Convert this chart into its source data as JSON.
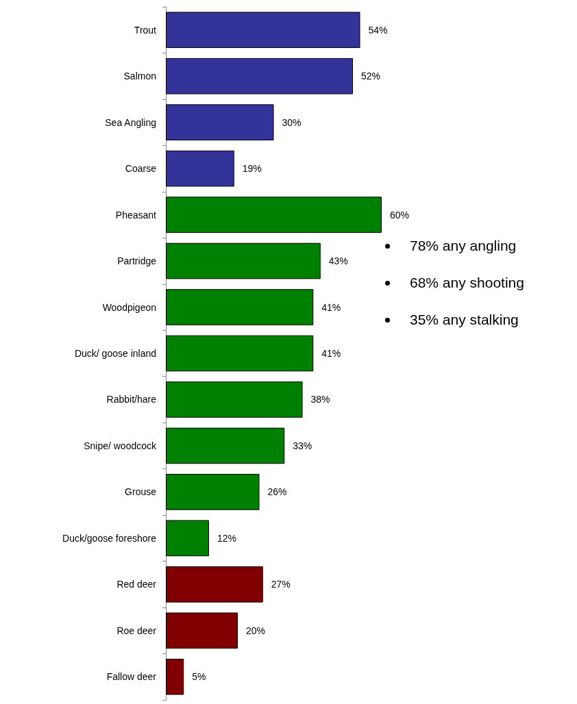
{
  "chart_data": {
    "type": "bar",
    "orientation": "horizontal",
    "categories": [
      "Trout",
      "Salmon",
      "Sea Angling",
      "Coarse",
      "Pheasant",
      "Partridge",
      "Woodpigeon",
      "Duck/ goose inland",
      "Rabbit/hare",
      "Snipe/ woodcock",
      "Grouse",
      "Duck/goose foreshore",
      "Red deer",
      "Roe deer",
      "Fallow deer"
    ],
    "values": [
      54,
      52,
      30,
      19,
      60,
      43,
      41,
      41,
      38,
      33,
      26,
      12,
      27,
      20,
      5
    ],
    "colors": [
      "#333399",
      "#333399",
      "#333399",
      "#333399",
      "#008000",
      "#008000",
      "#008000",
      "#008000",
      "#008000",
      "#008000",
      "#008000",
      "#008000",
      "#800000",
      "#800000",
      "#800000"
    ],
    "value_labels": [
      "54%",
      "52%",
      "30%",
      "19%",
      "60%",
      "43%",
      "41%",
      "41%",
      "38%",
      "33%",
      "26%",
      "12%",
      "27%",
      "20%",
      "5%"
    ],
    "annotations": [
      "78% any angling",
      "68% any shooting",
      "35% any stalking"
    ],
    "title": null
  }
}
